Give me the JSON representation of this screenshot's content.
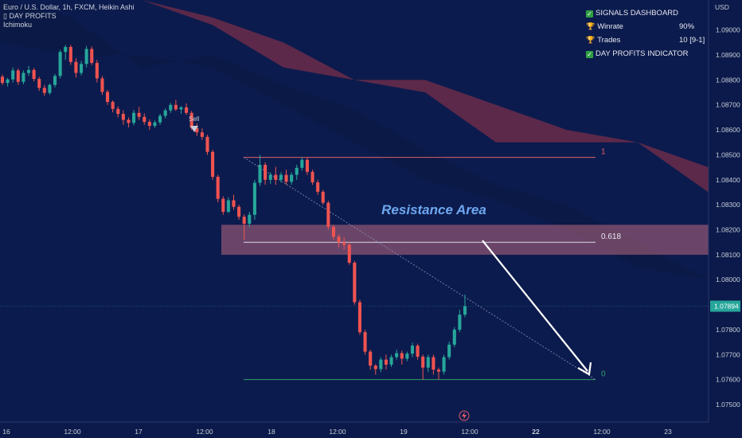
{
  "header": {
    "symbol_line": "Euro / U.S. Dollar, 1h, FXCM, Heikin Ashi",
    "indicator_1": "DAY PROFITS",
    "indicator_2": "Ichimoku"
  },
  "dashboard": {
    "title": "SIGNALS DASHBOARD",
    "winrate_label": "Winrate",
    "winrate_value": "90%",
    "trades_label": "Trades",
    "trades_value": "10 [9-1]",
    "indicator_label": "DAY PROFITS INDICATOR"
  },
  "currency": "USD",
  "colors": {
    "up": "#26a69a",
    "down": "#ef5350",
    "background": "#0b1a4a",
    "cloud": "#6b2c4a",
    "zone": "#e07a8c"
  },
  "chart_data": {
    "type": "candlestick",
    "title": "Euro / U.S. Dollar, 1h, FXCM, Heikin Ashi",
    "ylabel": "USD",
    "ylim": [
      1.0743,
      1.0912
    ],
    "y_ticks": [
      "1.09000",
      "1.08900",
      "1.08800",
      "1.08700",
      "1.08600",
      "1.08500",
      "1.08400",
      "1.08300",
      "1.08200",
      "1.08100",
      "1.08000",
      "1.07900",
      "1.07800",
      "1.07700",
      "1.07600",
      "1.07500"
    ],
    "x_ticks": [
      "16",
      "12:00",
      "17",
      "12:00",
      "18",
      "12:00",
      "19",
      "12:00",
      "22",
      "12:00",
      "23"
    ],
    "bold_x_tick": "22",
    "current_price": "1.07894",
    "annotations": {
      "resistance_label": "Resistance Area",
      "resistance_zone": [
        1.081,
        1.0822
      ],
      "sell_label": "Sell",
      "level_1_label": "1",
      "level_1_price": 1.0849,
      "level_0618_label": "0.618",
      "level_0618_price": 1.0815,
      "level_0_label": "0",
      "level_0_price": 1.076
    },
    "candles": [
      [
        1.08813,
        1.08822,
        1.0878,
        1.08788
      ],
      [
        1.08788,
        1.08808,
        1.08774,
        1.08802
      ],
      [
        1.08802,
        1.0885,
        1.0879,
        1.08838
      ],
      [
        1.08838,
        1.08846,
        1.0878,
        1.08792
      ],
      [
        1.08792,
        1.08838,
        1.08782,
        1.08828
      ],
      [
        1.08828,
        1.08856,
        1.08816,
        1.0884
      ],
      [
        1.0884,
        1.08848,
        1.08794,
        1.08804
      ],
      [
        1.08804,
        1.08812,
        1.08756,
        1.08768
      ],
      [
        1.08768,
        1.0878,
        1.08736,
        1.08748
      ],
      [
        1.08748,
        1.08786,
        1.0874,
        1.0878
      ],
      [
        1.0878,
        1.08824,
        1.0877,
        1.08816
      ],
      [
        1.08816,
        1.0892,
        1.08806,
        1.08912
      ],
      [
        1.08912,
        1.0894,
        1.0888,
        1.08932
      ],
      [
        1.08932,
        1.0894,
        1.0886,
        1.08872
      ],
      [
        1.08872,
        1.08886,
        1.0881,
        1.08828
      ],
      [
        1.08828,
        1.08876,
        1.08818,
        1.08864
      ],
      [
        1.08864,
        1.08936,
        1.0885,
        1.08924
      ],
      [
        1.08924,
        1.08934,
        1.0886,
        1.08868
      ],
      [
        1.08868,
        1.0888,
        1.0879,
        1.08806
      ],
      [
        1.08806,
        1.08816,
        1.0874,
        1.08752
      ],
      [
        1.08752,
        1.0876,
        1.087,
        1.08712
      ],
      [
        1.08712,
        1.08718,
        1.0867,
        1.08684
      ],
      [
        1.08684,
        1.08694,
        1.0865,
        1.08664
      ],
      [
        1.08664,
        1.08678,
        1.0862,
        1.0864
      ],
      [
        1.0864,
        1.0865,
        1.0861,
        1.08628
      ],
      [
        1.08628,
        1.0868,
        1.08618,
        1.08668
      ],
      [
        1.08668,
        1.08692,
        1.0864,
        1.08652
      ],
      [
        1.08652,
        1.08666,
        1.0862,
        1.08632
      ],
      [
        1.08632,
        1.08642,
        1.086,
        1.08616
      ],
      [
        1.08616,
        1.08638,
        1.08608,
        1.0863
      ],
      [
        1.0863,
        1.08664,
        1.0862,
        1.08656
      ],
      [
        1.08656,
        1.08686,
        1.08646,
        1.08678
      ],
      [
        1.08678,
        1.08708,
        1.08668,
        1.087
      ],
      [
        1.087,
        1.0872,
        1.08676,
        1.08682
      ],
      [
        1.08682,
        1.08696,
        1.08664,
        1.0869
      ],
      [
        1.0869,
        1.08706,
        1.0866,
        1.08668
      ],
      [
        1.08668,
        1.08676,
        1.086,
        1.08608
      ],
      [
        1.08608,
        1.08626,
        1.08576,
        1.0859
      ],
      [
        1.0859,
        1.08606,
        1.0856,
        1.08572
      ],
      [
        1.08572,
        1.0858,
        1.085,
        1.08512
      ],
      [
        1.08512,
        1.0852,
        1.084,
        1.08412
      ],
      [
        1.08412,
        1.0842,
        1.0831,
        1.08324
      ],
      [
        1.08324,
        1.08334,
        1.0826,
        1.08272
      ],
      [
        1.08272,
        1.0833,
        1.08266,
        1.08318
      ],
      [
        1.08318,
        1.0834,
        1.0828,
        1.08292
      ],
      [
        1.08292,
        1.083,
        1.0824,
        1.08252
      ],
      [
        1.08252,
        1.08262,
        1.0816,
        1.08224
      ],
      [
        1.08224,
        1.08272,
        1.0821,
        1.0826
      ],
      [
        1.0826,
        1.084,
        1.0824,
        1.08388
      ],
      [
        1.08388,
        1.085,
        1.08376,
        1.0846
      ],
      [
        1.0846,
        1.0847,
        1.0838,
        1.084
      ],
      [
        1.084,
        1.0843,
        1.08384,
        1.0842
      ],
      [
        1.0842,
        1.08452,
        1.0838,
        1.084
      ],
      [
        1.084,
        1.0843,
        1.0839,
        1.0842
      ],
      [
        1.0842,
        1.0844,
        1.0838,
        1.08392
      ],
      [
        1.08392,
        1.0843,
        1.0838,
        1.0842
      ],
      [
        1.0842,
        1.0846,
        1.084,
        1.08448
      ],
      [
        1.08448,
        1.0849,
        1.08436,
        1.0848
      ],
      [
        1.0848,
        1.08488,
        1.0842,
        1.08432
      ],
      [
        1.08432,
        1.0844,
        1.0838,
        1.0839
      ],
      [
        1.0839,
        1.084,
        1.0834,
        1.08352
      ],
      [
        1.08352,
        1.0836,
        1.083,
        1.08308
      ],
      [
        1.08308,
        1.08316,
        1.082,
        1.08212
      ],
      [
        1.08212,
        1.0822,
        1.0816,
        1.08172
      ],
      [
        1.08172,
        1.08182,
        1.0813,
        1.0815
      ],
      [
        1.0815,
        1.0817,
        1.0812,
        1.0814
      ],
      [
        1.0814,
        1.0815,
        1.0806,
        1.08068
      ],
      [
        1.08068,
        1.08076,
        1.079,
        1.0791
      ],
      [
        1.0791,
        1.0792,
        1.0778,
        1.0779
      ],
      [
        1.0779,
        1.078,
        1.077,
        1.07712
      ],
      [
        1.07712,
        1.0772,
        1.0764,
        1.07656
      ],
      [
        1.07656,
        1.07662,
        1.0762,
        1.07642
      ],
      [
        1.07642,
        1.0769,
        1.0763,
        1.0768
      ],
      [
        1.0768,
        1.077,
        1.0764,
        1.0766
      ],
      [
        1.0766,
        1.077,
        1.0765,
        1.0769
      ],
      [
        1.0769,
        1.0772,
        1.0768,
        1.07706
      ],
      [
        1.07706,
        1.07716,
        1.0766,
        1.07684
      ],
      [
        1.07684,
        1.07712,
        1.07674,
        1.07704
      ],
      [
        1.07704,
        1.07748,
        1.0769,
        1.07736
      ],
      [
        1.07736,
        1.07744,
        1.0768,
        1.07692
      ],
      [
        1.07692,
        1.077,
        1.076,
        1.07648
      ],
      [
        1.07648,
        1.077,
        1.0763,
        1.0769
      ],
      [
        1.0769,
        1.077,
        1.0762,
        1.0764
      ],
      [
        1.0764,
        1.07648,
        1.076,
        1.07632
      ],
      [
        1.07632,
        1.077,
        1.0762,
        1.0769
      ],
      [
        1.0769,
        1.07752,
        1.0768,
        1.0774
      ],
      [
        1.0774,
        1.0781,
        1.0773,
        1.078
      ],
      [
        1.078,
        1.0788,
        1.0779,
        1.0786
      ],
      [
        1.0786,
        1.0794,
        1.0785,
        1.07894
      ]
    ],
    "cloud_upper": [
      [
        1.0912,
        1.0912
      ],
      [
        1.0912,
        1.0912
      ],
      [
        1.0912,
        1.0912
      ],
      [
        1.0905,
        1.0902
      ],
      [
        1.0895,
        1.0885
      ],
      [
        1.088,
        1.088
      ],
      [
        1.088,
        1.0875
      ],
      [
        1.087,
        1.0855
      ],
      [
        1.086,
        1.0855
      ],
      [
        1.0855,
        1.0855
      ],
      [
        1.0845,
        1.0835
      ]
    ],
    "cloud_lower": [
      [
        1.0912,
        1.0895
      ],
      [
        1.0905,
        1.089
      ],
      [
        1.0885,
        1.089
      ],
      [
        1.089,
        1.0885
      ],
      [
        1.0878,
        1.087
      ],
      [
        1.0868,
        1.0855
      ],
      [
        1.0852,
        1.084
      ],
      [
        1.0838,
        1.0832
      ],
      [
        1.083,
        1.082
      ],
      [
        1.0815,
        1.0805
      ],
      [
        1.08,
        1.08
      ]
    ]
  }
}
